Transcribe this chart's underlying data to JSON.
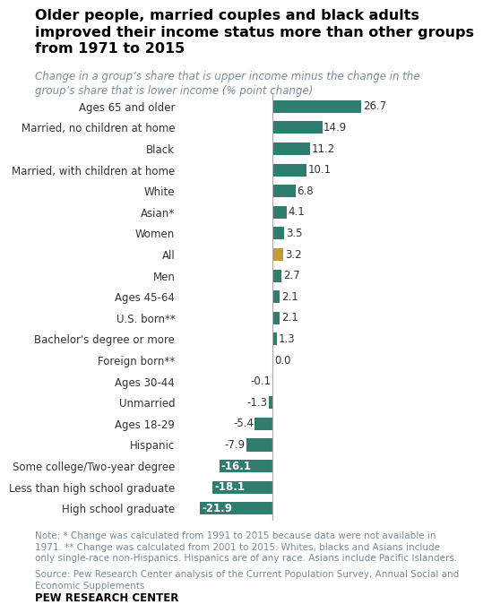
{
  "title": "Older people, married couples and black adults\nimproved their income status more than other groups\nfrom 1971 to 2015",
  "subtitle": "Change in a group’s share that is upper income minus the change in the\ngroup’s share that is lower income (% point change)",
  "categories": [
    "Ages 65 and older",
    "Married, no children at home",
    "Black",
    "Married, with children at home",
    "White",
    "Asian*",
    "Women",
    "All",
    "Men",
    "Ages 45-64",
    "U.S. born**",
    "Bachelor's degree or more",
    "Foreign born**",
    "Ages 30-44",
    "Unmarried",
    "Ages 18-29",
    "Hispanic",
    "Some college/Two-year degree",
    "Less than high school graduate",
    "High school graduate"
  ],
  "values": [
    26.7,
    14.9,
    11.2,
    10.1,
    6.8,
    4.1,
    3.5,
    3.2,
    2.7,
    2.1,
    2.1,
    1.3,
    0.0,
    -0.1,
    -1.3,
    -5.4,
    -7.9,
    -16.1,
    -18.1,
    -21.9
  ],
  "bar_colors": [
    "#2e7d6e",
    "#2e7d6e",
    "#2e7d6e",
    "#2e7d6e",
    "#2e7d6e",
    "#2e7d6e",
    "#2e7d6e",
    "#c8973a",
    "#2e7d6e",
    "#2e7d6e",
    "#2e7d6e",
    "#2e7d6e",
    "#2e7d6e",
    "#2e7d6e",
    "#2e7d6e",
    "#2e7d6e",
    "#2e7d6e",
    "#2e7d6e",
    "#2e7d6e",
    "#2e7d6e"
  ],
  "note": "Note: * Change was calculated from 1991 to 2015 because data were not available in\n1971. ** Change was calculated from 2001 to 2015. Whites, blacks and Asians include\nonly single-race non-Hispanics. Hispanics are of any race. Asians include Pacific Islanders.",
  "source": "Source: Pew Research Center analysis of the Current Population Survey, Annual Social and\nEconomic Supplements",
  "branding": "PEW RESEARCH CENTER",
  "title_fontsize": 11.5,
  "subtitle_fontsize": 8.5,
  "label_fontsize": 8.5,
  "value_fontsize": 8.5,
  "note_fontsize": 7.5,
  "xlim_min": -28,
  "xlim_max": 35,
  "note_color": "#7a8a99",
  "source_color": "#7a8a99"
}
